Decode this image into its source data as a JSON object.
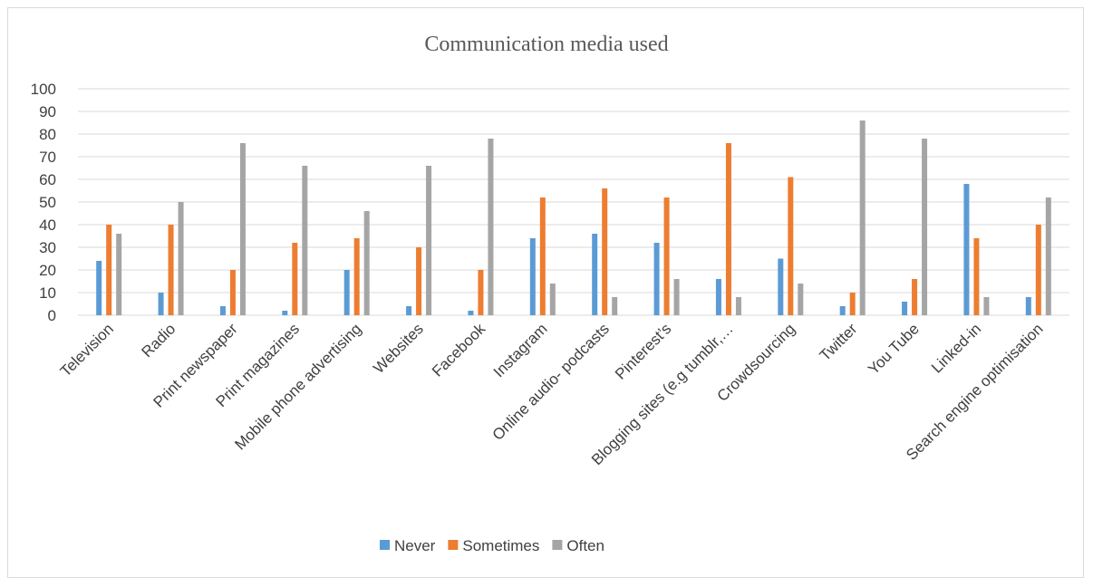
{
  "chart_data": {
    "type": "bar",
    "title": "Communication media used",
    "xlabel": "",
    "ylabel": "",
    "ylim": [
      0,
      100
    ],
    "yticks": [
      "0",
      "10",
      "20",
      "30",
      "40",
      "50",
      "60",
      "70",
      "80",
      "90",
      "100"
    ],
    "grid": true,
    "legend_position": "bottom",
    "categories": [
      "Television",
      "Radio",
      "Print newspaper",
      "Print magazines",
      "Mobile phone advertising",
      "Websites",
      "Facebook",
      "Instagram",
      "Online audio- podcasts",
      "Pinterest’s",
      "Blogging sites (e.g tumblr,…",
      "Crowdsourcing",
      "Twitter",
      "You Tube",
      "Linked-in",
      "Search engine optimisation"
    ],
    "series": [
      {
        "name": "Never",
        "color": "#5B9BD5",
        "values": [
          24,
          10,
          4,
          2,
          20,
          4,
          2,
          34,
          36,
          32,
          16,
          25,
          4,
          6,
          58,
          8
        ]
      },
      {
        "name": "Sometimes",
        "color": "#ED7D31",
        "values": [
          40,
          40,
          20,
          32,
          34,
          30,
          20,
          52,
          56,
          52,
          76,
          61,
          10,
          16,
          34,
          40
        ]
      },
      {
        "name": "Often",
        "color": "#A5A5A5",
        "values": [
          36,
          50,
          76,
          66,
          46,
          66,
          78,
          14,
          8,
          16,
          8,
          14,
          86,
          78,
          8,
          52
        ]
      }
    ]
  }
}
